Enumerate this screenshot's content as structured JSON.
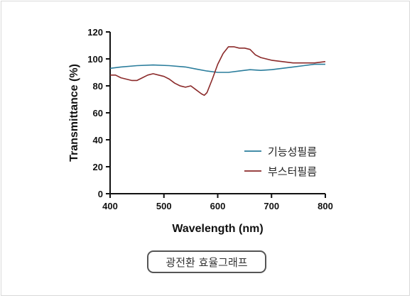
{
  "chart_data": {
    "type": "line",
    "title": "",
    "xlabel": "Wavelength (nm)",
    "ylabel": "Transmittance (%)",
    "xlim": [
      400,
      800
    ],
    "ylim": [
      0,
      120
    ],
    "xticks": [
      400,
      500,
      600,
      700,
      800
    ],
    "yticks": [
      0,
      20,
      40,
      60,
      80,
      100,
      120
    ],
    "grid": false,
    "legend_position": "lower-right",
    "series": [
      {
        "name": "기능성필름",
        "color": "#2a7d9c",
        "x": [
          400,
          420,
          450,
          480,
          510,
          540,
          560,
          580,
          600,
          620,
          640,
          660,
          680,
          700,
          720,
          740,
          760,
          780,
          800
        ],
        "y": [
          93,
          94,
          95,
          95.5,
          95,
          94,
          92.5,
          91,
          90,
          90,
          91,
          92,
          91.5,
          92,
          93,
          94,
          95,
          96,
          96
        ]
      },
      {
        "name": "부스터필름",
        "color": "#8b2a2a",
        "x": [
          400,
          410,
          420,
          430,
          440,
          450,
          460,
          470,
          480,
          490,
          500,
          510,
          520,
          530,
          540,
          550,
          560,
          570,
          575,
          580,
          590,
          600,
          610,
          620,
          630,
          640,
          650,
          660,
          670,
          680,
          700,
          720,
          740,
          760,
          780,
          800
        ],
        "y": [
          88,
          88,
          86,
          85,
          84,
          84,
          86,
          88,
          89,
          88,
          87,
          85,
          82,
          80,
          79,
          80,
          77,
          74,
          73,
          75,
          85,
          96,
          104,
          109,
          109,
          108,
          108,
          107,
          103,
          101,
          99,
          98,
          97,
          97,
          97,
          98
        ]
      }
    ]
  },
  "caption": "광전환 효율그래프",
  "colors": {
    "axis": "#111111",
    "caption_border": "#555555"
  }
}
